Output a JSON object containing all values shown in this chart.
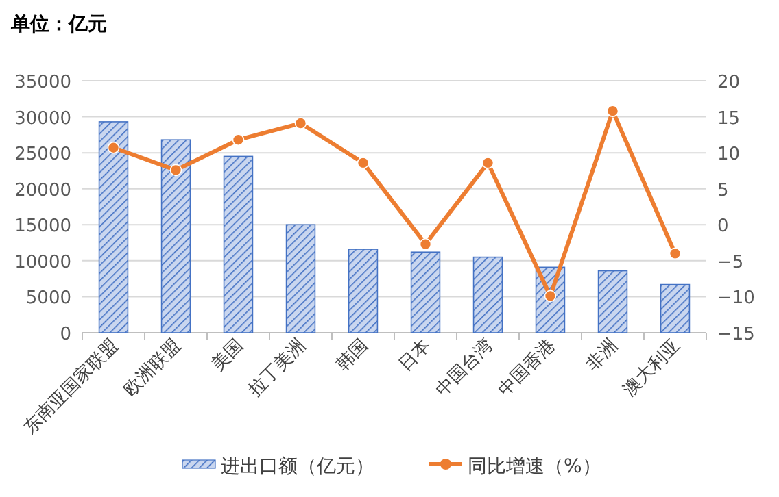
{
  "chart_data": {
    "type": "bar",
    "categories": [
      "东南亚国家联盟",
      "欧洲联盟",
      "美国",
      "拉丁美洲",
      "韩国",
      "日本",
      "中国台湾",
      "中国香港",
      "非洲",
      "澳大利亚"
    ],
    "series": [
      {
        "name": "进出口额（亿元）",
        "color": "#4472c4",
        "values": [
          29300,
          26800,
          24500,
          15000,
          11600,
          11200,
          10500,
          9100,
          8600,
          6700
        ]
      },
      {
        "name": "同比增速（%）",
        "type": "line",
        "axis": "y2",
        "color": "#ed7d31",
        "marker": "circle",
        "values": [
          10.7,
          7.6,
          11.8,
          14.1,
          8.6,
          -2.7,
          8.6,
          -9.9,
          15.8,
          -4.0
        ]
      }
    ],
    "ylim": [
      0,
      35000
    ],
    "yticks": [
      0,
      5000,
      10000,
      15000,
      20000,
      25000,
      30000,
      35000
    ],
    "y2lim": [
      -15,
      20
    ],
    "y2ticks": [
      -15,
      -10,
      -5,
      0,
      5,
      10,
      15,
      20
    ],
    "grid": "y",
    "legend": "bottom",
    "annotations": [
      "单位：亿元"
    ]
  }
}
